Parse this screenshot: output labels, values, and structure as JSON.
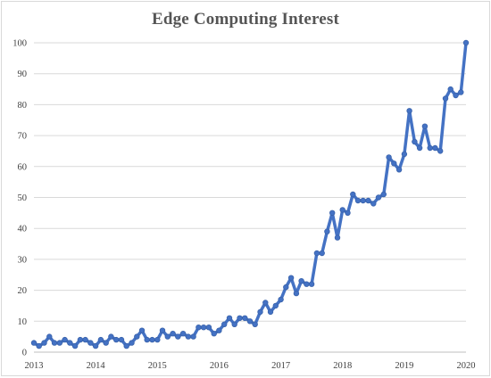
{
  "chart_data": {
    "type": "line",
    "title": "Edge Computing Interest",
    "xlabel": "",
    "ylabel": "",
    "ylim": [
      0,
      100
    ],
    "yticks": [
      "0",
      "10",
      "20",
      "30",
      "40",
      "50",
      "60",
      "70",
      "80",
      "90",
      "100"
    ],
    "xlim": [
      2013,
      2020
    ],
    "xticks": [
      "2013",
      "2014",
      "2015",
      "2016",
      "2017",
      "2018",
      "2019",
      "2020"
    ],
    "grid": true,
    "legend": "none",
    "line_color": "#4472c4",
    "series": [
      {
        "name": "",
        "x": [
          2013.0,
          2013.083,
          2013.167,
          2013.25,
          2013.333,
          2013.417,
          2013.5,
          2013.583,
          2013.667,
          2013.75,
          2013.833,
          2013.917,
          2014.0,
          2014.083,
          2014.167,
          2014.25,
          2014.333,
          2014.417,
          2014.5,
          2014.583,
          2014.667,
          2014.75,
          2014.833,
          2014.917,
          2015.0,
          2015.083,
          2015.167,
          2015.25,
          2015.333,
          2015.417,
          2015.5,
          2015.583,
          2015.667,
          2015.75,
          2015.833,
          2015.917,
          2016.0,
          2016.083,
          2016.167,
          2016.25,
          2016.333,
          2016.417,
          2016.5,
          2016.583,
          2016.667,
          2016.75,
          2016.833,
          2016.917,
          2017.0,
          2017.083,
          2017.167,
          2017.25,
          2017.333,
          2017.417,
          2017.5,
          2017.583,
          2017.667,
          2017.75,
          2017.833,
          2017.917,
          2018.0,
          2018.083,
          2018.167,
          2018.25,
          2018.333,
          2018.417,
          2018.5,
          2018.583,
          2018.667,
          2018.75,
          2018.833,
          2018.917,
          2019.0,
          2019.083,
          2019.167,
          2019.25,
          2019.333,
          2019.417,
          2019.5,
          2019.583,
          2019.667,
          2019.75,
          2019.833,
          2019.917,
          2020.0
        ],
        "values": [
          3,
          2,
          3,
          5,
          3,
          3,
          4,
          3,
          2,
          4,
          4,
          3,
          2,
          4,
          3,
          5,
          4,
          4,
          2,
          3,
          5,
          7,
          4,
          4,
          4,
          7,
          5,
          6,
          5,
          6,
          5,
          5,
          8,
          8,
          8,
          6,
          7,
          9,
          11,
          9,
          11,
          11,
          10,
          9,
          13,
          16,
          13,
          15,
          17,
          21,
          24,
          19,
          23,
          22,
          22,
          32,
          32,
          39,
          45,
          37,
          46,
          45,
          51,
          49,
          49,
          49,
          48,
          50,
          51,
          63,
          61,
          59,
          64,
          78,
          68,
          66,
          73,
          66,
          66,
          65,
          82,
          85,
          83,
          84,
          100
        ]
      }
    ]
  }
}
